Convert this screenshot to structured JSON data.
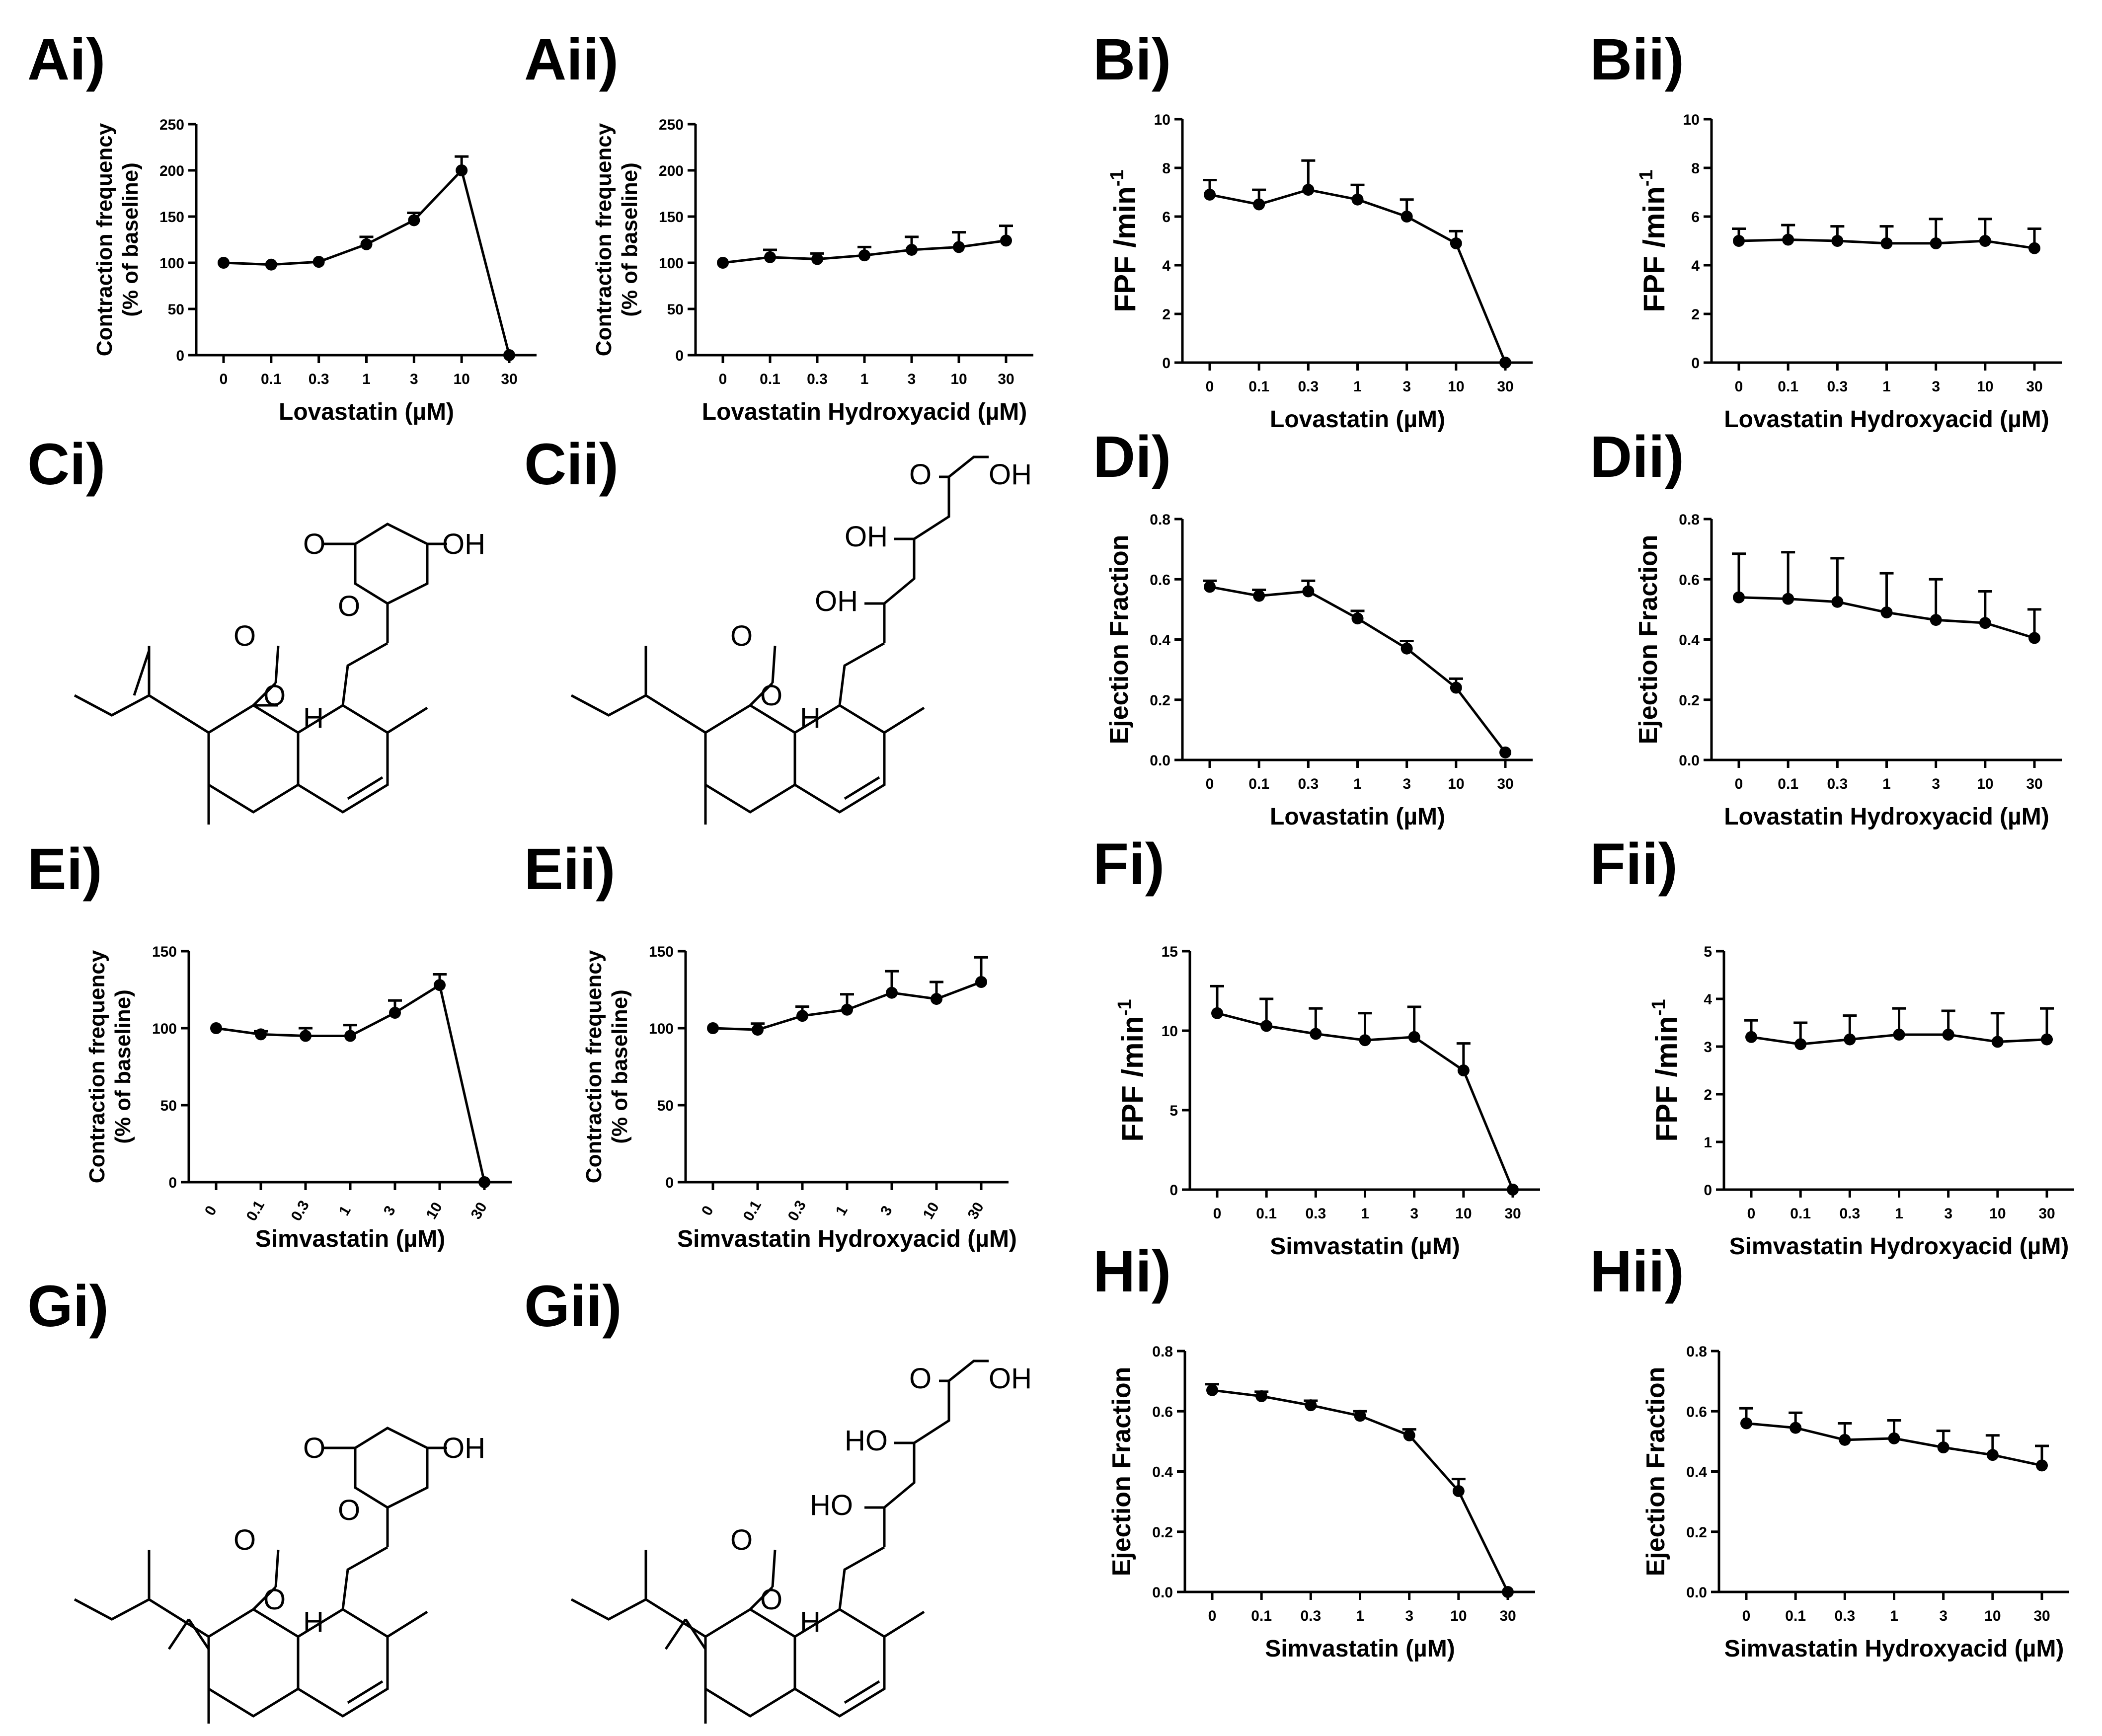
{
  "chart_data": [
    {
      "id": "Ai",
      "panel_label": "Ai)",
      "type": "line",
      "categories": [
        "0",
        "0.1",
        "0.3",
        "1",
        "3",
        "10",
        "30"
      ],
      "values": [
        100,
        98,
        101,
        120,
        146,
        200,
        0
      ],
      "errors": [
        0,
        0,
        0,
        8,
        8,
        15,
        0
      ],
      "ylim": [
        0,
        250
      ],
      "yticks": [
        "0",
        "50",
        "100",
        "150",
        "200",
        "250"
      ],
      "ylabel_lines": [
        "Contraction frequency",
        "(% of baseline)"
      ],
      "xlabel": "Lovastatin (µM)"
    },
    {
      "id": "Aii",
      "panel_label": "Aii)",
      "type": "line",
      "categories": [
        "0",
        "0.1",
        "0.3",
        "1",
        "3",
        "10",
        "30"
      ],
      "values": [
        100,
        106,
        104,
        108,
        114,
        117,
        124
      ],
      "errors": [
        0,
        8,
        6,
        9,
        14,
        16,
        16
      ],
      "ylim": [
        0,
        250
      ],
      "yticks": [
        "0",
        "50",
        "100",
        "150",
        "200",
        "250"
      ],
      "ylabel_lines": [
        "Contraction frequency",
        "(% of baseline)"
      ],
      "xlabel": "Lovastatin Hydroxyacid (µM)"
    },
    {
      "id": "Bi",
      "panel_label": "Bi)",
      "type": "line",
      "categories": [
        "0",
        "0.1",
        "0.3",
        "1",
        "3",
        "10",
        "30"
      ],
      "values": [
        6.9,
        6.5,
        7.1,
        6.7,
        6.0,
        4.9,
        0
      ],
      "errors": [
        0.6,
        0.6,
        1.2,
        0.6,
        0.7,
        0.5,
        0
      ],
      "ylim": [
        0,
        10
      ],
      "yticks": [
        "0",
        "2",
        "4",
        "6",
        "8",
        "10"
      ],
      "ylabel": "FPF /min",
      "ylabel_sup": "-1",
      "xlabel": "Lovastatin (µM)"
    },
    {
      "id": "Bii",
      "panel_label": "Bii)",
      "type": "line",
      "categories": [
        "0",
        "0.1",
        "0.3",
        "1",
        "3",
        "10",
        "30"
      ],
      "values": [
        5.0,
        5.05,
        5.0,
        4.9,
        4.9,
        5.0,
        4.7
      ],
      "errors": [
        0.5,
        0.6,
        0.6,
        0.7,
        1.0,
        0.9,
        0.8
      ],
      "ylim": [
        0,
        10
      ],
      "yticks": [
        "0",
        "2",
        "4",
        "6",
        "8",
        "10"
      ],
      "ylabel": "FPF /min",
      "ylabel_sup": "-1",
      "xlabel": "Lovastatin Hydroxyacid (µM)"
    },
    {
      "id": "Di",
      "panel_label": "Di)",
      "type": "line",
      "categories": [
        "0",
        "0.1",
        "0.3",
        "1",
        "3",
        "10",
        "30"
      ],
      "values": [
        0.575,
        0.545,
        0.56,
        0.47,
        0.37,
        0.24,
        0.025
      ],
      "errors": [
        0.02,
        0.02,
        0.035,
        0.025,
        0.025,
        0.03,
        0
      ],
      "ylim": [
        0,
        0.8
      ],
      "yticks": [
        "0.0",
        "0.2",
        "0.4",
        "0.6",
        "0.8"
      ],
      "ylabel": "Ejection Fraction",
      "xlabel": "Lovastatin (µM)"
    },
    {
      "id": "Dii",
      "panel_label": "Dii)",
      "type": "line",
      "categories": [
        "0",
        "0.1",
        "0.3",
        "1",
        "3",
        "10",
        "30"
      ],
      "values": [
        0.54,
        0.535,
        0.525,
        0.49,
        0.465,
        0.455,
        0.405
      ],
      "errors": [
        0.145,
        0.155,
        0.145,
        0.13,
        0.135,
        0.105,
        0.095
      ],
      "ylim": [
        0,
        0.8
      ],
      "yticks": [
        "0.0",
        "0.2",
        "0.4",
        "0.6",
        "0.8"
      ],
      "ylabel": "Ejection Fraction",
      "xlabel": "Lovastatin Hydroxyacid (µM)"
    },
    {
      "id": "Ei",
      "panel_label": "Ei)",
      "type": "line",
      "categories": [
        "0",
        "0.1",
        "0.3",
        "1",
        "3",
        "10",
        "30"
      ],
      "values": [
        100,
        96,
        95,
        95,
        110,
        128,
        0
      ],
      "errors": [
        0,
        2,
        5,
        7,
        8,
        7,
        0
      ],
      "ylim": [
        0,
        150
      ],
      "yticks": [
        "0",
        "50",
        "100",
        "150"
      ],
      "ylabel_lines": [
        "Contraction frequency",
        "(% of baseline)"
      ],
      "xlabel": "Simvastatin (µM)"
    },
    {
      "id": "Eii",
      "panel_label": "Eii)",
      "type": "line",
      "categories": [
        "0",
        "0.1",
        "0.3",
        "1",
        "3",
        "10",
        "30"
      ],
      "values": [
        100,
        99,
        108,
        112,
        123,
        119,
        130
      ],
      "errors": [
        0,
        4,
        6,
        10,
        14,
        11,
        16
      ],
      "ylim": [
        0,
        150
      ],
      "yticks": [
        "0",
        "50",
        "100",
        "150"
      ],
      "ylabel_lines": [
        "Contraction frequency",
        "(% of baseline)"
      ],
      "xlabel": "Simvastatin Hydroxyacid (µM)"
    },
    {
      "id": "Fi",
      "panel_label": "Fi)",
      "type": "line",
      "categories": [
        "0",
        "0.1",
        "0.3",
        "1",
        "3",
        "10",
        "30"
      ],
      "values": [
        11.1,
        10.3,
        9.8,
        9.4,
        9.6,
        7.5,
        0
      ],
      "errors": [
        1.7,
        1.7,
        1.6,
        1.7,
        1.9,
        1.7,
        0
      ],
      "ylim": [
        0,
        15
      ],
      "yticks": [
        "0",
        "5",
        "10",
        "15"
      ],
      "ylabel": "FPF /min",
      "ylabel_sup": "-1",
      "xlabel": "Simvastatin (µM)"
    },
    {
      "id": "Fii",
      "panel_label": "Fii)",
      "type": "line",
      "categories": [
        "0",
        "0.1",
        "0.3",
        "1",
        "3",
        "10",
        "30"
      ],
      "values": [
        3.2,
        3.05,
        3.15,
        3.25,
        3.25,
        3.1,
        3.15
      ],
      "errors": [
        0.35,
        0.45,
        0.5,
        0.55,
        0.5,
        0.6,
        0.65
      ],
      "ylim": [
        0,
        5
      ],
      "yticks": [
        "0",
        "1",
        "2",
        "3",
        "4",
        "5"
      ],
      "ylabel": "FPF /min",
      "ylabel_sup": "-1",
      "xlabel": "Simvastatin Hydroxyacid (µM)"
    },
    {
      "id": "Hi",
      "panel_label": "Hi)",
      "type": "line",
      "categories": [
        "0",
        "0.1",
        "0.3",
        "1",
        "3",
        "10",
        "30"
      ],
      "values": [
        0.67,
        0.65,
        0.62,
        0.585,
        0.52,
        0.335,
        0
      ],
      "errors": [
        0.02,
        0.015,
        0.015,
        0.015,
        0.02,
        0.04,
        0
      ],
      "ylim": [
        0,
        0.8
      ],
      "yticks": [
        "0.0",
        "0.2",
        "0.4",
        "0.6",
        "0.8"
      ],
      "ylabel": "Ejection Fraction",
      "xlabel": "Simvastatin (µM)"
    },
    {
      "id": "Hii",
      "panel_label": "Hii)",
      "type": "line",
      "categories": [
        "0",
        "0.1",
        "0.3",
        "1",
        "3",
        "10",
        "30"
      ],
      "values": [
        0.56,
        0.545,
        0.505,
        0.51,
        0.48,
        0.455,
        0.42
      ],
      "errors": [
        0.05,
        0.05,
        0.055,
        0.06,
        0.055,
        0.065,
        0.065
      ],
      "ylim": [
        0,
        0.8
      ],
      "yticks": [
        "0.0",
        "0.2",
        "0.4",
        "0.6",
        "0.8"
      ],
      "ylabel": "Ejection Fraction",
      "xlabel": "Simvastatin Hydroxyacid (µM)"
    }
  ],
  "structures": [
    {
      "id": "Ci",
      "panel_label": "Ci)",
      "atoms": {
        "o_carbonyl": "O",
        "o_ring": "O",
        "oh_1": "OH",
        "o_ester": "O",
        "o_ester_carbonyl": "O",
        "h": "H"
      }
    },
    {
      "id": "Cii",
      "panel_label": "Cii)",
      "atoms": {
        "o_carbonyl": "O",
        "oh_acid": "OH",
        "oh_1": "OH",
        "oh_2": "OH",
        "o_ester": "O",
        "o_ester_carbonyl": "O",
        "h": "H"
      }
    },
    {
      "id": "Gi",
      "panel_label": "Gi)",
      "atoms": {
        "o_carbonyl": "O",
        "o_ring": "O",
        "oh_1": "OH",
        "o_ester": "O",
        "o_ester_carbonyl": "O",
        "h": "H"
      }
    },
    {
      "id": "Gii",
      "panel_label": "Gii)",
      "atoms": {
        "o_carbonyl": "O",
        "oh_acid": "OH",
        "oh_1": "HO",
        "oh_2": "HO",
        "o_ester": "O",
        "o_ester_carbonyl": "O",
        "h": "H"
      }
    }
  ]
}
